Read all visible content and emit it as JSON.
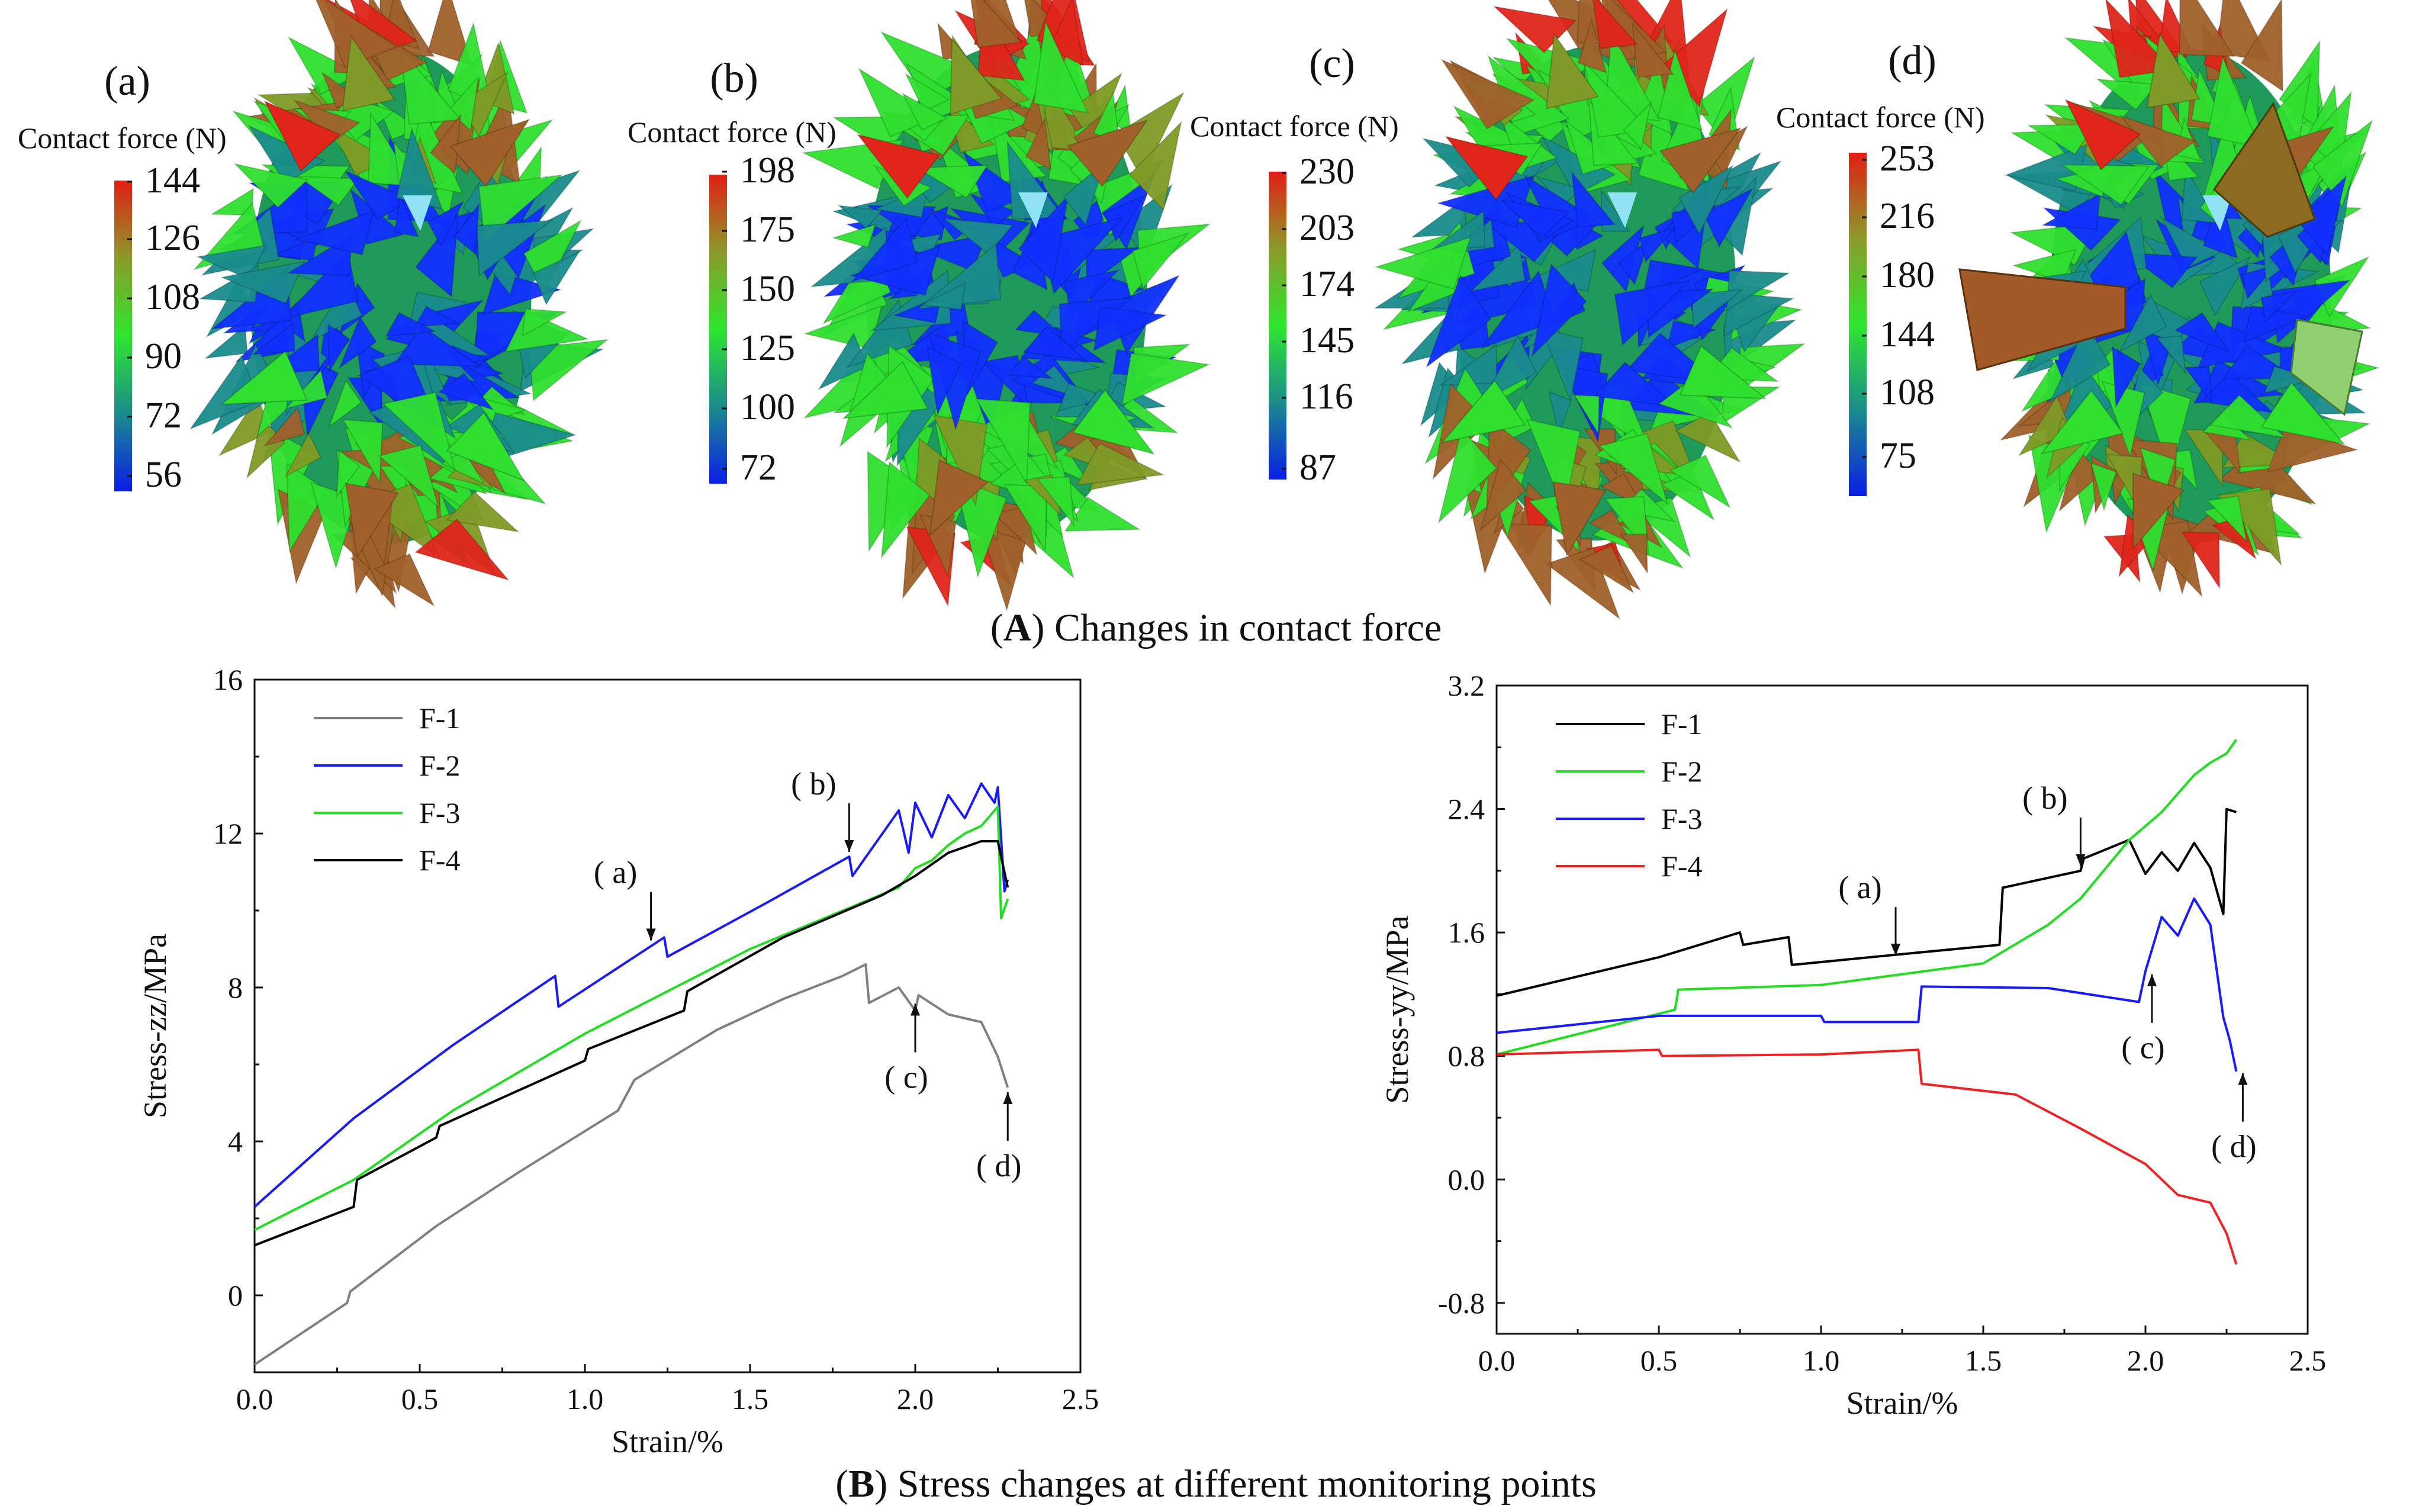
{
  "figure": {
    "caption_a_letter": "A",
    "caption_a_text": " Changes in contact force",
    "caption_b_letter": "B",
    "caption_b_text": " Stress changes at different monitoring points",
    "colors": {
      "red": "#e0251b",
      "brown": "#a0602a",
      "olive": "#7f9a26",
      "green": "#2fe02f",
      "teal": "#1a8c8c",
      "blue": "#1030ff",
      "cyan": "#8fe3f5"
    }
  },
  "panels": [
    {
      "label": "(a)",
      "colorbar_title": "Contact force (N)",
      "ticks": [
        "144",
        "126",
        "108",
        "90",
        "72",
        "56"
      ]
    },
    {
      "label": "(b)",
      "colorbar_title": "Contact force (N)",
      "ticks": [
        "198",
        "175",
        "150",
        "125",
        "100",
        "72"
      ]
    },
    {
      "label": "(c)",
      "colorbar_title": "Contact force (N)",
      "ticks": [
        "230",
        "203",
        "174",
        "145",
        "116",
        "87"
      ]
    },
    {
      "label": "(d)",
      "colorbar_title": "Contact force (N)",
      "ticks": [
        "253",
        "216",
        "180",
        "144",
        "108",
        "75"
      ]
    }
  ],
  "chart_data": [
    {
      "type": "line",
      "title": "",
      "xlabel": "Strain/%",
      "ylabel": "Stress-zz/MPa",
      "xlim": [
        0,
        2.5
      ],
      "ylim": [
        -2,
        16
      ],
      "xticks": [
        "0.0",
        "0.5",
        "1.0",
        "1.5",
        "2.0",
        "2.5"
      ],
      "yticks": [
        "0",
        "4",
        "8",
        "12",
        "16"
      ],
      "legend": "top-left",
      "series": [
        {
          "name": "F-1",
          "color": "#808080",
          "x": [
            0,
            0.28,
            0.29,
            0.55,
            0.8,
            1.1,
            1.15,
            1.4,
            1.6,
            1.78,
            1.85,
            1.86,
            1.95,
            2.0,
            2.01,
            2.1,
            2.2,
            2.25,
            2.28
          ],
          "y": [
            -1.8,
            -0.2,
            0.1,
            1.8,
            3.2,
            4.8,
            5.6,
            6.9,
            7.7,
            8.3,
            8.6,
            7.6,
            8.0,
            7.4,
            7.8,
            7.3,
            7.1,
            6.2,
            5.4
          ]
        },
        {
          "name": "F-2",
          "color": "#1a1aff",
          "x": [
            0,
            0.3,
            0.6,
            0.91,
            0.92,
            1.24,
            1.25,
            1.55,
            1.8,
            1.81,
            1.95,
            1.98,
            2.0,
            2.05,
            2.1,
            2.15,
            2.2,
            2.24,
            2.25,
            2.27,
            2.28
          ],
          "y": [
            2.3,
            4.6,
            6.5,
            8.3,
            7.5,
            9.3,
            8.8,
            10.2,
            11.4,
            10.9,
            12.6,
            11.5,
            12.8,
            11.9,
            13.0,
            12.4,
            13.3,
            12.8,
            13.2,
            10.5,
            10.8
          ]
        },
        {
          "name": "F-3",
          "color": "#22dd22",
          "x": [
            0,
            0.3,
            0.6,
            1.0,
            1.5,
            1.95,
            2.0,
            2.05,
            2.1,
            2.15,
            2.2,
            2.25,
            2.26,
            2.28
          ],
          "y": [
            1.7,
            3.0,
            4.8,
            6.8,
            9.0,
            10.6,
            11.1,
            11.3,
            11.7,
            12.0,
            12.2,
            12.7,
            9.8,
            10.3
          ]
        },
        {
          "name": "F-4",
          "color": "#000000",
          "x": [
            0,
            0.3,
            0.31,
            0.55,
            0.56,
            1.0,
            1.01,
            1.3,
            1.31,
            1.6,
            1.9,
            2.0,
            2.1,
            2.2,
            2.25,
            2.28
          ],
          "y": [
            1.3,
            2.3,
            3.0,
            4.1,
            4.4,
            6.1,
            6.4,
            7.4,
            7.9,
            9.3,
            10.4,
            10.9,
            11.5,
            11.8,
            11.8,
            10.6
          ]
        }
      ],
      "annotations": [
        {
          "text": "( a)",
          "x": 1.2,
          "y": 9.1
        },
        {
          "text": "( b)",
          "x": 1.8,
          "y": 11.4
        },
        {
          "text": "( c)",
          "x": 2.0,
          "y": 7.7
        },
        {
          "text": "( d)",
          "x": 2.28,
          "y": 5.4
        }
      ]
    },
    {
      "type": "line",
      "title": "",
      "xlabel": "Strain/%",
      "ylabel": "Stress-yy/MPa",
      "xlim": [
        0,
        2.5
      ],
      "ylim": [
        -1.0,
        3.2
      ],
      "xticks": [
        "0.0",
        "0.5",
        "1.0",
        "1.5",
        "2.0",
        "2.5"
      ],
      "yticks": [
        "-0.8",
        "0.0",
        "0.8",
        "1.6",
        "2.4",
        "3.2"
      ],
      "legend": "top-left",
      "series": [
        {
          "name": "F-1",
          "color": "#000000",
          "x": [
            0,
            0.5,
            0.75,
            0.76,
            0.9,
            0.91,
            1.3,
            1.55,
            1.56,
            1.8,
            1.81,
            1.95,
            2.0,
            2.05,
            2.1,
            2.15,
            2.2,
            2.24,
            2.25,
            2.28
          ],
          "y": [
            1.19,
            1.44,
            1.6,
            1.52,
            1.57,
            1.39,
            1.47,
            1.52,
            1.89,
            2.0,
            2.08,
            2.2,
            1.98,
            2.12,
            2.0,
            2.18,
            2.02,
            1.72,
            2.4,
            2.38
          ]
        },
        {
          "name": "F-2",
          "color": "#22dd22",
          "x": [
            0,
            0.55,
            0.56,
            1.0,
            1.5,
            1.7,
            1.8,
            1.95,
            2.05,
            2.1,
            2.15,
            2.2,
            2.25,
            2.28
          ],
          "y": [
            0.81,
            1.1,
            1.23,
            1.26,
            1.4,
            1.65,
            1.82,
            2.2,
            2.38,
            2.5,
            2.62,
            2.7,
            2.76,
            2.85
          ]
        },
        {
          "name": "F-3",
          "color": "#1a1aff",
          "x": [
            0,
            0.5,
            1.0,
            1.01,
            1.3,
            1.31,
            1.7,
            1.98,
            2.0,
            2.05,
            2.1,
            2.15,
            2.2,
            2.24,
            2.26,
            2.28
          ],
          "y": [
            0.95,
            1.06,
            1.06,
            1.02,
            1.02,
            1.25,
            1.24,
            1.15,
            1.35,
            1.7,
            1.58,
            1.82,
            1.65,
            1.05,
            0.9,
            0.7
          ]
        },
        {
          "name": "F-4",
          "color": "#ee2222",
          "x": [
            0,
            0.5,
            0.51,
            1.0,
            1.3,
            1.31,
            1.6,
            1.8,
            2.0,
            2.1,
            2.2,
            2.25,
            2.28
          ],
          "y": [
            0.81,
            0.84,
            0.8,
            0.81,
            0.84,
            0.62,
            0.55,
            0.33,
            0.1,
            -0.1,
            -0.15,
            -0.35,
            -0.55
          ]
        }
      ],
      "annotations": [
        {
          "text": "( a)",
          "x": 1.23,
          "y": 1.42
        },
        {
          "text": "( b)",
          "x": 1.8,
          "y": 2.0
        },
        {
          "text": "( c)",
          "x": 2.02,
          "y": 1.36
        },
        {
          "text": "( d)",
          "x": 2.3,
          "y": 0.72
        }
      ]
    }
  ]
}
